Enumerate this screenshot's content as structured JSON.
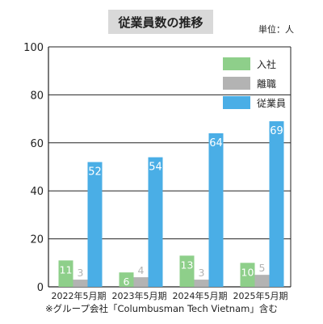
{
  "chart_data": {
    "type": "bar",
    "title": "従業員数の推移",
    "unit_label": "単位：人",
    "footnote": "※グループ会社「Columbusman Tech Vietnam」含む",
    "categories": [
      "2022年5月期",
      "2023年5月期",
      "2024年5月期",
      "2025年5月期"
    ],
    "series": [
      {
        "name": "入社",
        "values": [
          11,
          6,
          13,
          10
        ],
        "color": "#8ecf8a",
        "label_color": "#ffffff"
      },
      {
        "name": "離職",
        "values": [
          3,
          4,
          3,
          5
        ],
        "color": "#b3b3b3",
        "label_color": "#b3b3b3"
      },
      {
        "name": "従業員",
        "values": [
          52,
          54,
          64,
          69
        ],
        "color": "#4aaee6",
        "label_color": "#ffffff"
      }
    ],
    "ylim": [
      0,
      100
    ],
    "yticks": [
      0,
      20,
      40,
      60,
      80,
      100
    ],
    "grid": true,
    "legend_position": "top-right"
  }
}
